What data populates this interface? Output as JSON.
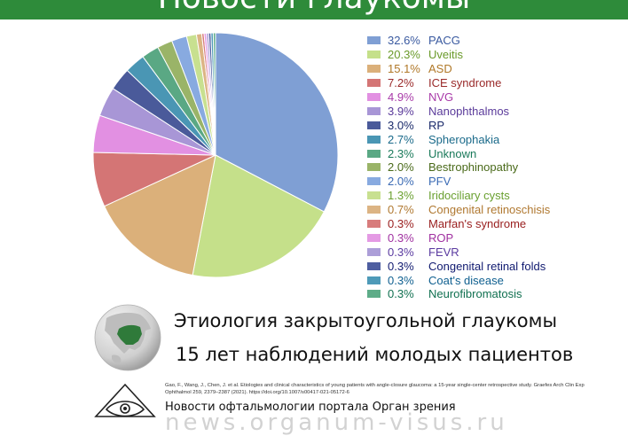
{
  "header": {
    "title": "Новости глаукомы",
    "color": "#2e8b3a"
  },
  "chart_data": {
    "type": "pie",
    "series": [
      {
        "pct": "32.6%",
        "label": "PACG",
        "value": 32.6,
        "color": "#7f9fd4",
        "text_color": "#3a5aa0"
      },
      {
        "pct": "20.3%",
        "label": "Uveitis",
        "value": 20.3,
        "color": "#c5e08a",
        "text_color": "#6a9a2a"
      },
      {
        "pct": "15.1%",
        "label": "ASD",
        "value": 15.1,
        "color": "#dbb07a",
        "text_color": "#b07828"
      },
      {
        "pct": "7.2%",
        "label": "ICE syndrome",
        "value": 7.2,
        "color": "#d47575",
        "text_color": "#9a2a2a"
      },
      {
        "pct": "4.9%",
        "label": "NVG",
        "value": 4.9,
        "color": "#e290e2",
        "text_color": "#a83aa8"
      },
      {
        "pct": "3.9%",
        "label": "Nanophthalmos",
        "value": 3.9,
        "color": "#a896d6",
        "text_color": "#5a3a9a"
      },
      {
        "pct": "3.0%",
        "label": "RP",
        "value": 3.0,
        "color": "#4a5a9a",
        "text_color": "#1a2a6a"
      },
      {
        "pct": "2.7%",
        "label": "Spherophakia",
        "value": 2.7,
        "color": "#4a96b4",
        "text_color": "#1a6a8a"
      },
      {
        "pct": "2.3%",
        "label": "Unknown",
        "value": 2.3,
        "color": "#5aa884",
        "text_color": "#1a7a5a"
      },
      {
        "pct": "2.0%",
        "label": "Bestrophinopathy",
        "value": 2.0,
        "color": "#9ab468",
        "text_color": "#4a6a1a"
      },
      {
        "pct": "2.0%",
        "label": "PFV",
        "value": 2.0,
        "color": "#88aae0",
        "text_color": "#3a6ab4"
      },
      {
        "pct": "1.3%",
        "label": "Iridociliary cysts",
        "value": 1.3,
        "color": "#c8e090",
        "text_color": "#6aa030"
      },
      {
        "pct": "0.7%",
        "label": "Congenital retinoschisis",
        "value": 0.7,
        "color": "#dcb484",
        "text_color": "#b07830"
      },
      {
        "pct": "0.3%",
        "label": "Marfan's syndrome",
        "value": 0.3,
        "color": "#d87c7c",
        "text_color": "#9a2020"
      },
      {
        "pct": "0.3%",
        "label": "ROP",
        "value": 0.3,
        "color": "#e49ae4",
        "text_color": "#a030a0"
      },
      {
        "pct": "0.3%",
        "label": "FEVR",
        "value": 0.3,
        "color": "#ac9ed8",
        "text_color": "#5a3aa0"
      },
      {
        "pct": "0.3%",
        "label": "Congenital retinal folds",
        "value": 0.3,
        "color": "#4e5ea0",
        "text_color": "#101a70"
      },
      {
        "pct": "0.3%",
        "label": "Coat's disease",
        "value": 0.3,
        "color": "#4e9ab8",
        "text_color": "#106090"
      },
      {
        "pct": "0.3%",
        "label": "Neurofibromatosis",
        "value": 0.3,
        "color": "#5eac88",
        "text_color": "#107050"
      }
    ]
  },
  "caption": {
    "title": "Этиология закрытоугольной глаукомы",
    "subtitle": "15 лет наблюдений молодых пациентов"
  },
  "citation": "Gao, F., Wang, J., Chen, J. et al. Etiologies and clinical characteristics of young patients with angle-closure glaucoma: a 15-year single-center retrospective study. Graefes Arch Clin Exp Ophthalmol 259, 2379–2387 (2021). https://doi.org/10.1007/s00417-021-05172-6",
  "footer": {
    "portal": "Новости офтальмологии портала Орган зрения",
    "watermark": "news.organum-visus.ru"
  }
}
